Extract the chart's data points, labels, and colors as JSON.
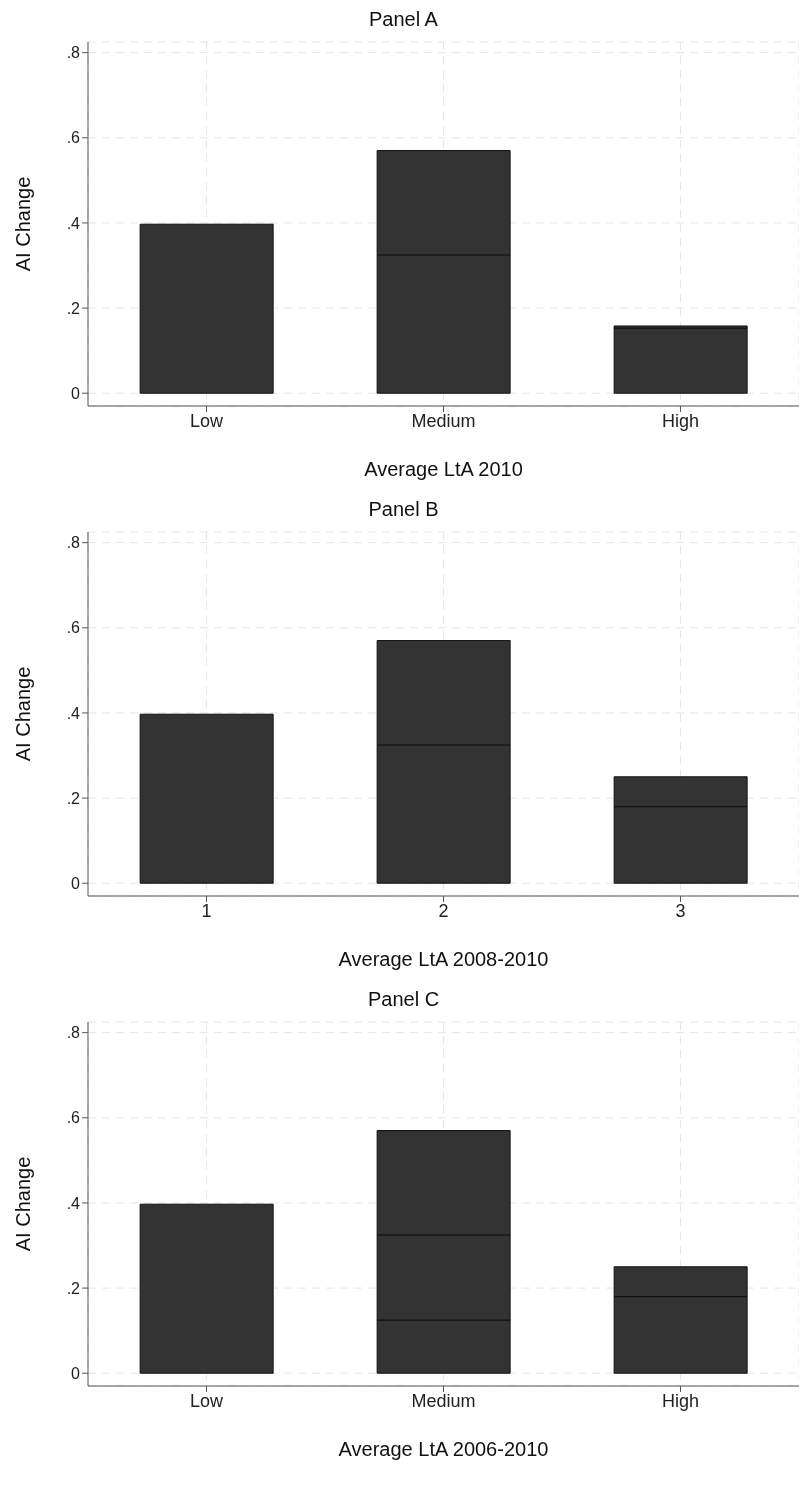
{
  "chart_data": [
    {
      "type": "bar",
      "title": "Panel A",
      "xlabel": "Average LtA 2010",
      "ylabel": "AI Change",
      "categories": [
        "Low",
        "Medium",
        "High"
      ],
      "stacked": true,
      "series": [
        {
          "color": "#333333",
          "values": [
            0.397,
            0.325,
            0.153
          ]
        },
        {
          "color": "#333333",
          "values": [
            null,
            0.245,
            0.005
          ]
        }
      ],
      "ylim": [
        -0.03,
        0.825
      ],
      "yticks": [
        {
          "value": 0,
          "label": "0"
        },
        {
          "value": 0.2,
          "label": ".2"
        },
        {
          "value": 0.4,
          "label": ".4"
        },
        {
          "value": 0.6,
          "label": ".6"
        },
        {
          "value": 0.8,
          "label": ".8"
        }
      ],
      "grid": true
    },
    {
      "type": "bar",
      "title": "Panel B",
      "xlabel": "Average LtA 2008-2010",
      "ylabel": "AI Change",
      "categories": [
        "1",
        "2",
        "3"
      ],
      "stacked": true,
      "series": [
        {
          "color": "#333333",
          "values": [
            0.397,
            0.325,
            0.18
          ]
        },
        {
          "color": "#333333",
          "values": [
            null,
            0.245,
            0.07
          ]
        }
      ],
      "ylim": [
        -0.03,
        0.825
      ],
      "yticks": [
        {
          "value": 0,
          "label": "0"
        },
        {
          "value": 0.2,
          "label": ".2"
        },
        {
          "value": 0.4,
          "label": ".4"
        },
        {
          "value": 0.6,
          "label": ".6"
        },
        {
          "value": 0.8,
          "label": ".8"
        }
      ],
      "grid": true
    },
    {
      "type": "bar",
      "title": "Panel C",
      "xlabel": "Average LtA 2006-2010",
      "ylabel": "AI Change",
      "categories": [
        "Low",
        "Medium",
        "High"
      ],
      "stacked": true,
      "series": [
        {
          "color": "#333333",
          "values": [
            0.397,
            0.125,
            0.18
          ]
        },
        {
          "color": "#333333",
          "values": [
            null,
            0.2,
            0.07
          ]
        },
        {
          "color": "#333333",
          "values": [
            null,
            0.245,
            null
          ]
        }
      ],
      "ylim": [
        -0.03,
        0.825
      ],
      "yticks": [
        {
          "value": 0,
          "label": "0"
        },
        {
          "value": 0.2,
          "label": ".2"
        },
        {
          "value": 0.4,
          "label": ".4"
        },
        {
          "value": 0.6,
          "label": ".6"
        },
        {
          "value": 0.8,
          "label": ".8"
        }
      ],
      "grid": true
    }
  ]
}
